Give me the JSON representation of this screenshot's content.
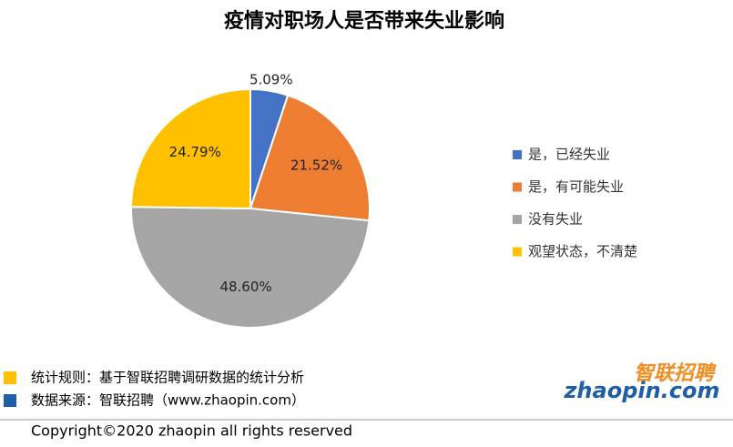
{
  "chart_data": {
    "type": "pie",
    "title": "疫情对职场人是否带来失业影响",
    "categories": [
      "是，已经失业",
      "是，有可能失业",
      "没有失业",
      "观望状态，不清楚"
    ],
    "values": [
      5.09,
      21.52,
      48.6,
      24.79
    ],
    "value_labels": [
      "5.09%",
      "21.52%",
      "48.60%",
      "24.79%"
    ],
    "colors": [
      "#4472c4",
      "#ed7d31",
      "#a5a5a5",
      "#ffc000"
    ],
    "legend": "right"
  },
  "footer": {
    "notes": [
      {
        "text": "统计规则：基于智联招聘调研数据的统计分析",
        "color": "#ffc000"
      },
      {
        "text": "数据来源：智联招聘（www.zhaopin.com）",
        "color": "#1f5fa8"
      }
    ],
    "copyright": "Copyright©2020 zhaopin all rights reserved",
    "logo_cn": "智联招聘",
    "logo_en": "zhaopin.com"
  }
}
